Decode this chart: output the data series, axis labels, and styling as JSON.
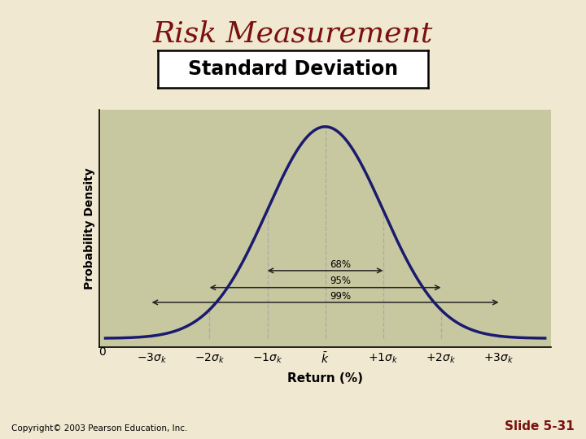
{
  "title": "Risk Measurement",
  "subtitle": "Standard Deviation",
  "xlabel": "Return (%)",
  "ylabel": "Probability Density",
  "background_color": "#f0e8d0",
  "plot_bg_color": "#c8c8a0",
  "title_color": "#7a1010",
  "title_fontsize": 26,
  "subtitle_fontsize": 17,
  "curve_color": "#1a1a70",
  "curve_lw": 2.5,
  "dashed_color": "#aaaaaa",
  "arrow_color": "#222222",
  "pct_68": "68%",
  "pct_95": "95%",
  "pct_99": "99%",
  "copyright": "Copyright© 2003 Pearson Education, Inc.",
  "slide": "Slide 5-31",
  "slide_color": "#7a1010"
}
